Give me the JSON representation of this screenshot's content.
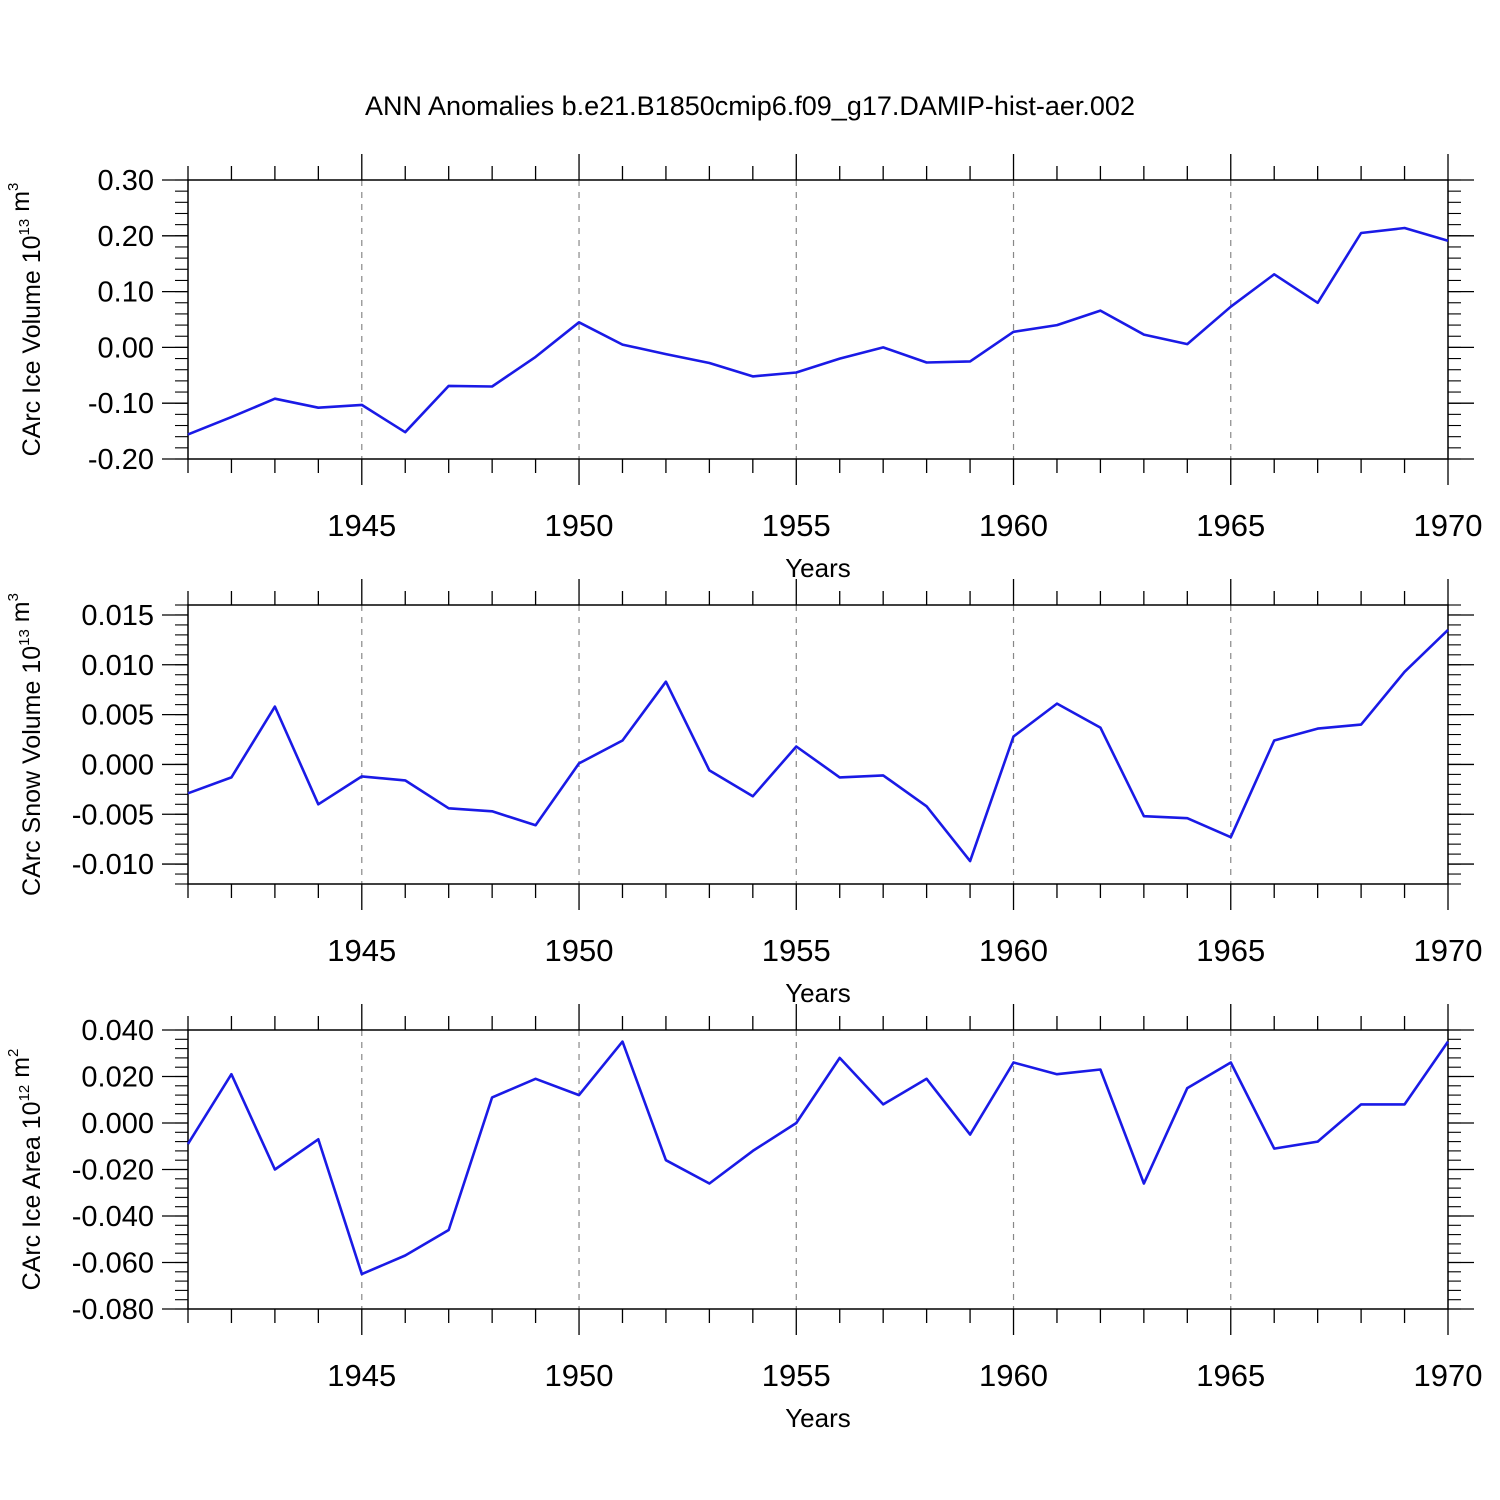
{
  "title": "ANN Anomalies b.e21.B1850cmip6.f09_g17.DAMIP-hist-aer.002",
  "colors": {
    "line": "#1a1ae6",
    "axis": "#000000",
    "grid": "#888888"
  },
  "chart_data": [
    {
      "type": "line",
      "xlabel": "Years",
      "ylabel": {
        "text": "CArc Ice Volume 10",
        "exponent": "13",
        "unit": " m",
        "unit_exponent": "3"
      },
      "xlim": [
        1941,
        1970
      ],
      "ylim": [
        -0.2,
        0.3
      ],
      "xticks": [
        "1945",
        "1950",
        "1955",
        "1960",
        "1965",
        "1970"
      ],
      "yticks": [
        "0.30",
        "0.20",
        "0.10",
        "0.00",
        "-0.10",
        "-0.20"
      ],
      "ytick_values": [
        0.3,
        0.2,
        0.1,
        0.0,
        -0.1,
        -0.2
      ],
      "grid": "dashed vertical lines at major x ticks",
      "series": [
        {
          "x": [
            1941,
            1942,
            1943,
            1944,
            1945,
            1946,
            1947,
            1948,
            1949,
            1950,
            1951,
            1952,
            1953,
            1954,
            1955,
            1956,
            1957,
            1958,
            1959,
            1960,
            1961,
            1962,
            1963,
            1964,
            1965,
            1966,
            1967,
            1968,
            1969,
            1970
          ],
          "values": [
            -0.156,
            -0.125,
            -0.092,
            -0.108,
            -0.103,
            -0.152,
            -0.069,
            -0.07,
            -0.017,
            0.045,
            0.005,
            -0.012,
            -0.028,
            -0.052,
            -0.045,
            -0.02,
            0.0,
            -0.027,
            -0.025,
            0.028,
            0.04,
            0.066,
            0.023,
            0.006,
            0.073,
            0.131,
            0.08,
            0.205,
            0.214,
            0.191
          ]
        }
      ]
    },
    {
      "type": "line",
      "xlabel": "Years",
      "ylabel": {
        "text": "CArc Snow Volume 10",
        "exponent": "13",
        "unit": " m",
        "unit_exponent": "3"
      },
      "xlim": [
        1941,
        1970
      ],
      "ylim": [
        -0.012,
        0.016
      ],
      "xticks": [
        "1945",
        "1950",
        "1955",
        "1960",
        "1965",
        "1970"
      ],
      "yticks": [
        "0.015",
        "0.010",
        "0.005",
        "0.000",
        "-0.005",
        "-0.010"
      ],
      "ytick_values": [
        0.015,
        0.01,
        0.005,
        0.0,
        -0.005,
        -0.01
      ],
      "grid": "dashed vertical lines at major x ticks",
      "series": [
        {
          "x": [
            1941,
            1942,
            1943,
            1944,
            1945,
            1946,
            1947,
            1948,
            1949,
            1950,
            1951,
            1952,
            1953,
            1954,
            1955,
            1956,
            1957,
            1958,
            1959,
            1960,
            1961,
            1962,
            1963,
            1964,
            1965,
            1966,
            1967,
            1968,
            1969,
            1970
          ],
          "values": [
            -0.0029,
            -0.0013,
            0.0058,
            -0.004,
            -0.0012,
            -0.0016,
            -0.0044,
            -0.0047,
            -0.0061,
            0.0001,
            0.0024,
            0.0083,
            -0.0006,
            -0.0032,
            0.0018,
            -0.0013,
            -0.0011,
            -0.0042,
            -0.0097,
            0.0028,
            0.0061,
            0.0037,
            -0.0052,
            -0.0054,
            -0.0073,
            0.0024,
            0.0036,
            0.004,
            0.0093,
            0.0135
          ]
        }
      ]
    },
    {
      "type": "line",
      "xlabel": "Years",
      "ylabel": {
        "text": "CArc Ice Area 10",
        "exponent": "12",
        "unit": " m",
        "unit_exponent": "2"
      },
      "xlim": [
        1941,
        1970
      ],
      "ylim": [
        -0.08,
        0.04
      ],
      "xticks": [
        "1945",
        "1950",
        "1955",
        "1960",
        "1965",
        "1970"
      ],
      "yticks": [
        "0.040",
        "0.020",
        "0.000",
        "-0.020",
        "-0.040",
        "-0.060",
        "-0.080"
      ],
      "ytick_values": [
        0.04,
        0.02,
        0.0,
        -0.02,
        -0.04,
        -0.06,
        -0.08
      ],
      "grid": "dashed vertical lines at major x ticks",
      "series": [
        {
          "x": [
            1941,
            1942,
            1943,
            1944,
            1945,
            1946,
            1947,
            1948,
            1949,
            1950,
            1951,
            1952,
            1953,
            1954,
            1955,
            1956,
            1957,
            1958,
            1959,
            1960,
            1961,
            1962,
            1963,
            1964,
            1965,
            1966,
            1967,
            1968,
            1969,
            1970
          ],
          "values": [
            -0.009,
            0.021,
            -0.02,
            -0.007,
            -0.065,
            -0.057,
            -0.046,
            0.011,
            0.019,
            0.012,
            0.035,
            -0.016,
            -0.026,
            -0.012,
            0.0,
            0.028,
            0.008,
            0.019,
            -0.005,
            0.026,
            0.021,
            0.023,
            -0.026,
            0.015,
            0.026,
            -0.011,
            -0.008,
            0.008,
            0.008,
            0.035
          ]
        }
      ]
    }
  ]
}
